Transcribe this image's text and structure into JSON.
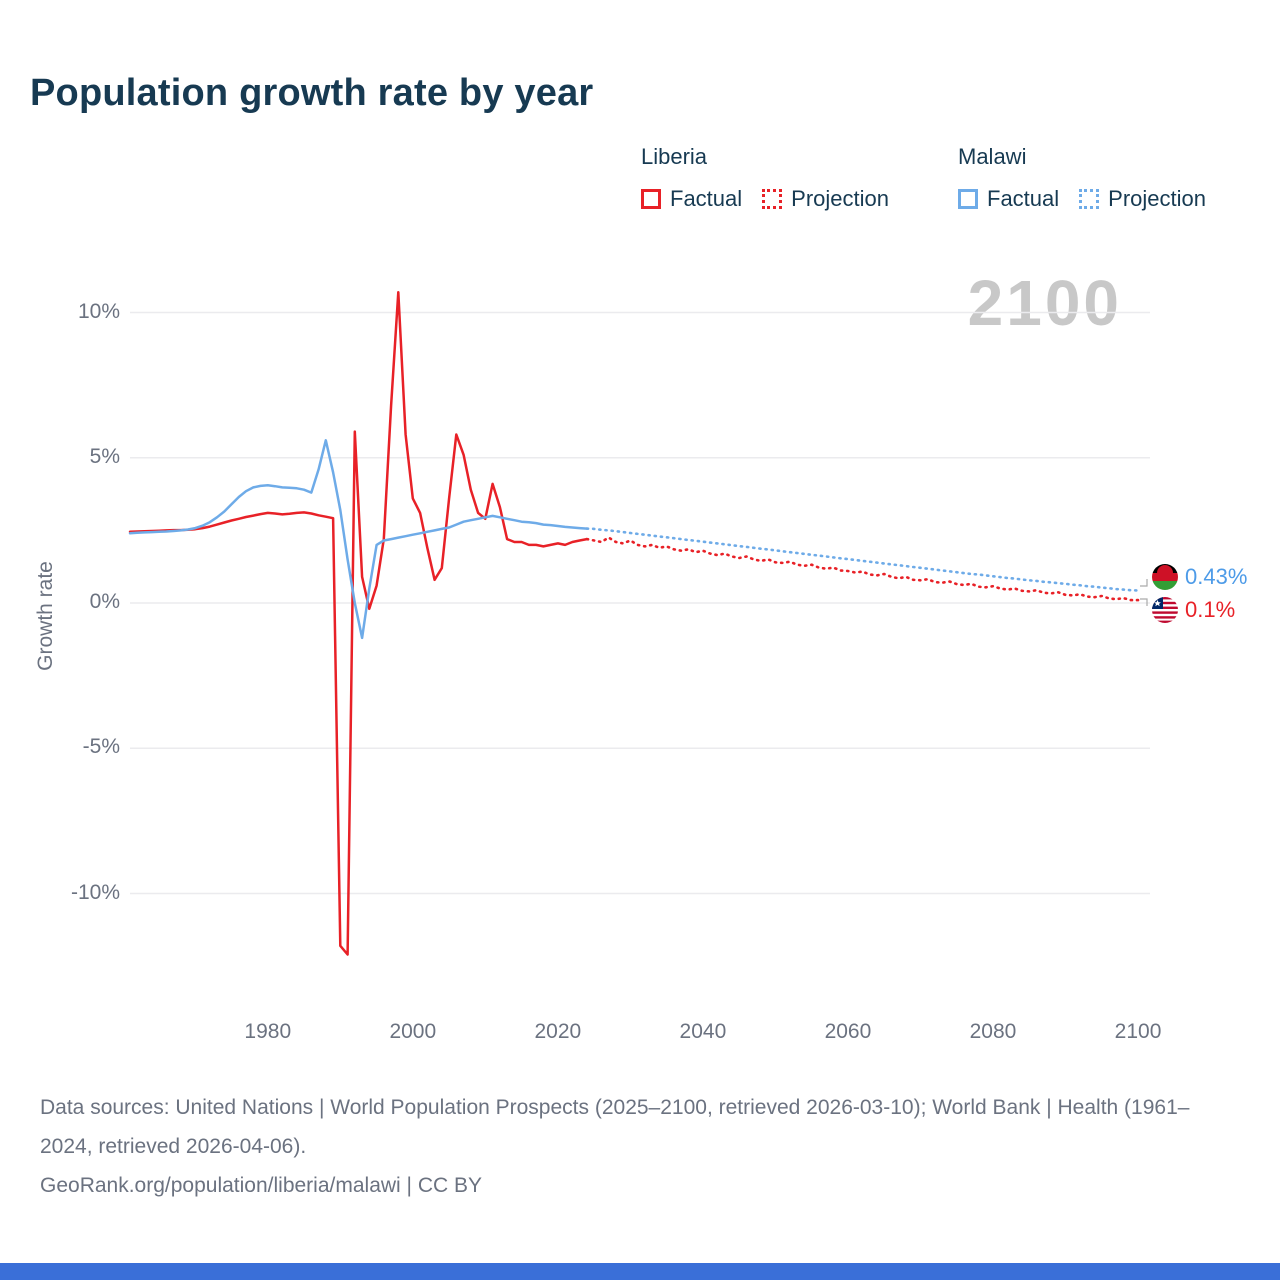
{
  "title": "Population growth rate by year",
  "watermark": "2100",
  "legend": {
    "liberia_label": "Liberia",
    "malawi_label": "Malawi",
    "factual_label": "Factual",
    "projection_label": "Projection"
  },
  "colors": {
    "liberia": "#e82127",
    "malawi": "#6eabe8",
    "malawi_text": "#4d9be8",
    "title": "#173a52",
    "axis_text": "#6b7280",
    "grid": "#ebebee",
    "watermark": "#c8c8c8",
    "footer": "#6b7280",
    "bottom_bar": "#3a6fd8"
  },
  "y_axis": {
    "label": "Growth rate",
    "ticks": [
      "10%",
      "5%",
      "0%",
      "-5%",
      "-10%"
    ],
    "tick_values": [
      10,
      5,
      0,
      -5,
      -10
    ]
  },
  "end_labels": {
    "malawi": {
      "value": "0.43%"
    },
    "liberia": {
      "value": "0.1%"
    }
  },
  "footer": {
    "line1": "Data sources: United Nations | World Population Prospects (2025–2100, retrieved 2026-03-10); World Bank | Health (1961–2024, retrieved 2026-04-06).",
    "line2": "GeoRank.org/population/liberia/malawi | CC BY"
  },
  "chart_data": {
    "type": "line",
    "title": "Population growth rate by year",
    "xlabel": "",
    "ylabel": "Growth rate",
    "xlim": [
      1961,
      2100
    ],
    "ylim_percent": [
      -12.5,
      11
    ],
    "x_ticks": [
      1980,
      2000,
      2020,
      2040,
      2060,
      2080,
      2100
    ],
    "y_ticks_percent": [
      10,
      5,
      0,
      -5,
      -10
    ],
    "grid": "horizontal-only",
    "legend_position": "top",
    "series": [
      {
        "name": "Liberia Factual",
        "style": "solid",
        "color_key": "liberia",
        "start_year": 1961,
        "values": [
          2.45,
          2.46,
          2.47,
          2.48,
          2.49,
          2.5,
          2.51,
          2.51,
          2.52,
          2.54,
          2.58,
          2.63,
          2.7,
          2.77,
          2.84,
          2.9,
          2.96,
          3.01,
          3.06,
          3.1,
          3.08,
          3.05,
          3.07,
          3.1,
          3.12,
          3.08,
          3.02,
          2.97,
          2.92,
          -11.8,
          -12.1,
          5.9,
          0.9,
          -0.2,
          0.6,
          2.2,
          6.8,
          10.7,
          5.8,
          3.6,
          3.1,
          1.9,
          0.8,
          1.2,
          3.6,
          5.8,
          5.1,
          3.9,
          3.1,
          2.9,
          4.1,
          3.3,
          2.2,
          2.1,
          2.1,
          2.0,
          2.0,
          1.95,
          2.0,
          2.05,
          2.0,
          2.1,
          2.15,
          2.2
        ]
      },
      {
        "name": "Liberia Projection",
        "style": "dotted",
        "color_key": "liberia",
        "start_year": 2024,
        "values": [
          2.2,
          2.15,
          2.1,
          2.25,
          2.1,
          2.05,
          2.15,
          2.0,
          1.95,
          2.0,
          1.9,
          1.95,
          1.85,
          1.8,
          1.85,
          1.75,
          1.8,
          1.7,
          1.65,
          1.7,
          1.6,
          1.55,
          1.6,
          1.5,
          1.45,
          1.5,
          1.4,
          1.38,
          1.42,
          1.32,
          1.28,
          1.32,
          1.22,
          1.18,
          1.22,
          1.12,
          1.1,
          1.05,
          1.08,
          0.98,
          0.95,
          1.0,
          0.9,
          0.85,
          0.9,
          0.8,
          0.78,
          0.82,
          0.72,
          0.7,
          0.74,
          0.65,
          0.62,
          0.66,
          0.56,
          0.54,
          0.58,
          0.5,
          0.46,
          0.5,
          0.42,
          0.4,
          0.44,
          0.35,
          0.33,
          0.37,
          0.28,
          0.26,
          0.3,
          0.22,
          0.2,
          0.24,
          0.16,
          0.13,
          0.17,
          0.1,
          0.1
        ]
      },
      {
        "name": "Malawi Factual",
        "style": "solid",
        "color_key": "malawi",
        "start_year": 1961,
        "values": [
          2.4,
          2.42,
          2.43,
          2.44,
          2.45,
          2.46,
          2.48,
          2.5,
          2.53,
          2.58,
          2.66,
          2.78,
          2.95,
          3.15,
          3.4,
          3.65,
          3.85,
          3.98,
          4.03,
          4.05,
          4.02,
          3.98,
          3.97,
          3.95,
          3.9,
          3.8,
          4.6,
          5.6,
          4.5,
          3.2,
          1.5,
          0.0,
          -1.2,
          0.5,
          2.0,
          2.15,
          2.2,
          2.25,
          2.3,
          2.35,
          2.4,
          2.45,
          2.5,
          2.55,
          2.6,
          2.7,
          2.8,
          2.85,
          2.9,
          2.95,
          3.0,
          2.95,
          2.9,
          2.85,
          2.8,
          2.78,
          2.75,
          2.7,
          2.68,
          2.65,
          2.62,
          2.6,
          2.58,
          2.56
        ]
      },
      {
        "name": "Malawi Projection",
        "style": "dotted",
        "color_key": "malawi",
        "start_year": 2024,
        "values": [
          2.56,
          2.55,
          2.52,
          2.5,
          2.47,
          2.44,
          2.41,
          2.38,
          2.35,
          2.32,
          2.29,
          2.26,
          2.23,
          2.2,
          2.17,
          2.14,
          2.11,
          2.08,
          2.05,
          2.02,
          1.99,
          1.96,
          1.93,
          1.9,
          1.87,
          1.84,
          1.81,
          1.78,
          1.75,
          1.72,
          1.69,
          1.66,
          1.63,
          1.6,
          1.57,
          1.54,
          1.51,
          1.48,
          1.45,
          1.42,
          1.39,
          1.36,
          1.33,
          1.3,
          1.27,
          1.24,
          1.21,
          1.18,
          1.15,
          1.12,
          1.09,
          1.06,
          1.03,
          1.0,
          0.98,
          0.95,
          0.92,
          0.89,
          0.86,
          0.84,
          0.81,
          0.78,
          0.76,
          0.73,
          0.71,
          0.68,
          0.66,
          0.63,
          0.61,
          0.58,
          0.56,
          0.53,
          0.51,
          0.48,
          0.46,
          0.44,
          0.43
        ]
      }
    ]
  }
}
